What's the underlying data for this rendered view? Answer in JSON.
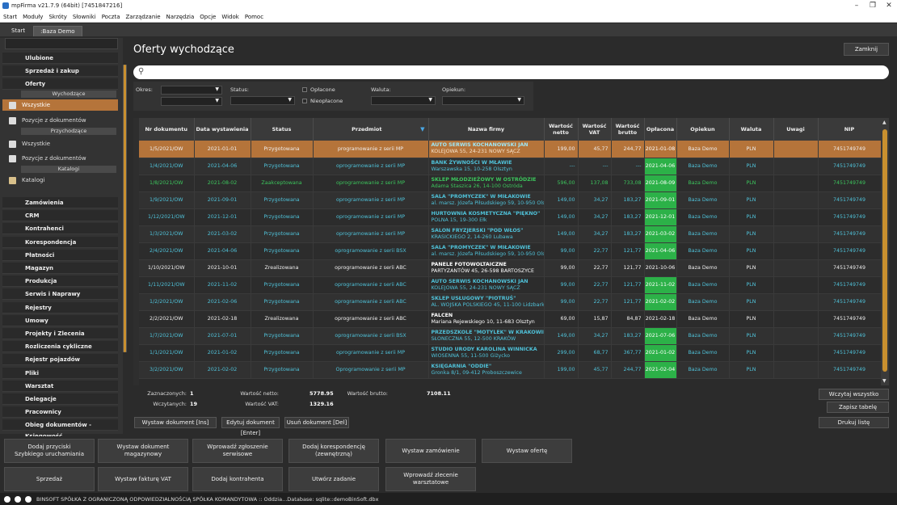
{
  "window": {
    "title": "mpFirma v21.7.9 (64bit) [7451847216]"
  },
  "menu": [
    "Start",
    "Moduły",
    "Skróty",
    "Słowniki",
    "Poczta",
    "Zarządzanie",
    "Narzędzia",
    "Opcje",
    "Widok",
    "Pomoc"
  ],
  "tabs": [
    "Start",
    ":Baza Demo"
  ],
  "sidebar": {
    "top_items": [
      "Ulubione",
      "Sprzedaż i zakup",
      "Oferty"
    ],
    "oferty_sub": {
      "wychodzace": "Wychodzące",
      "wszystkie": "Wszystkie",
      "pozycje": "Pozycje z dokumentów",
      "przychodzace": "Przychodzące",
      "wszystkie2": "Wszystkie",
      "pozycje2": "Pozycje z dokumentów",
      "katalogi_hdr": "Katalogi",
      "katalogi": "Katalogi"
    },
    "bottom_items": [
      "Zamówienia",
      "CRM",
      "Kontrahenci",
      "Korespondencja",
      "Płatności",
      "Magazyn",
      "Produkcja",
      "Serwis i Naprawy",
      "Rejestry",
      "Umowy",
      "Projekty i Zlecenia",
      "Rozliczenia cykliczne",
      "Rejestr pojazdów",
      "Pliki",
      "Warsztat",
      "Delegacje",
      "Pracownicy",
      "Obieg dokumentów - Księgowość"
    ]
  },
  "main": {
    "title": "Oferty wychodzące",
    "close": "Zamknij"
  },
  "filters": {
    "okres": "Okres:",
    "status": "Status:",
    "oplacone": "Opłacone",
    "nieoplacone": "Nieopłacone",
    "waluta": "Waluta:",
    "opiekun": "Opiekun:"
  },
  "colors": {
    "accent": "#b5743a",
    "paid": "#2cb148",
    "teal": "#4fc1d8",
    "green_text": "#3cc45c"
  },
  "table": {
    "headers": [
      "Nr dokumentu",
      "Data wystawienia",
      "Status",
      "Przedmiot",
      "Nazwa firmy",
      "Wartość netto",
      "Wartość VAT",
      "Wartość brutto",
      "Opłacona",
      "Opiekun",
      "Waluta",
      "Uwagi",
      "NIP"
    ],
    "rows": [
      {
        "nr": "1/5/2021/OW",
        "data": "2021-01-01",
        "status": "Przygotowana",
        "przedmiot": "programowanie z serii MP",
        "firma": "AUTO SERWIS KOCHANOWSKI JAN",
        "adres": "KOLEJOWA 55, 24-231 NOWY SĄCZ",
        "netto": "199,00",
        "vat": "45,77",
        "brutto": "244,77",
        "oplacona": "2021-01-08",
        "opiekun": "Baza Demo",
        "waluta": "PLN",
        "uwagi": "",
        "nip": "7451749749",
        "paid": false,
        "style": "sel"
      },
      {
        "nr": "1/4/2021/OW",
        "data": "2021-04-06",
        "status": "Przygotowana",
        "przedmiot": "oprogramowanie z serii MP",
        "firma": "BANK ŻYWNOŚCI W MŁAWIE",
        "adres": "Warszawska 15, 10-258 Olsztyn",
        "netto": "---",
        "vat": "---",
        "brutto": "---",
        "oplacona": "2021-04-06",
        "opiekun": "Baza Demo",
        "waluta": "PLN",
        "uwagi": "",
        "nip": "7451749749",
        "paid": true,
        "style": "teal"
      },
      {
        "nr": "1/8/2021/OW",
        "data": "2021-08-02",
        "status": "Zaakceptowana",
        "przedmiot": "oprogramowanie z serii MP",
        "firma": "SKLEP MŁODZIEŻOWY W OSTRÓDZIE",
        "adres": "Adama Staszica 26, 14-100 Ostróda",
        "netto": "596,00",
        "vat": "137,08",
        "brutto": "733,08",
        "oplacona": "2021-08-09",
        "opiekun": "Baza Demo",
        "waluta": "PLN",
        "uwagi": "",
        "nip": "7451749749",
        "paid": true,
        "style": "green"
      },
      {
        "nr": "1/9/2021/OW",
        "data": "2021-09-01",
        "status": "Przygotowana",
        "przedmiot": "oprogramowanie z serii MP",
        "firma": "SALA \"PROMYCZEK\" W MIŁAKOWIE",
        "adres": "al. marsz. Józefa Piłsudskiego 59, 10-950 Olszty",
        "netto": "149,00",
        "vat": "34,27",
        "brutto": "183,27",
        "oplacona": "2021-09-01",
        "opiekun": "Baza Demo",
        "waluta": "PLN",
        "uwagi": "",
        "nip": "7451749749",
        "paid": true,
        "style": "teal"
      },
      {
        "nr": "1/12/2021/OW",
        "data": "2021-12-01",
        "status": "Przygotowana",
        "przedmiot": "oprogramowanie z serii MP",
        "firma": "HURTOWNIA KOSMETYCZNA \"PIĘKNO\"",
        "adres": "POLNA 15, 19-300 Ełk",
        "netto": "149,00",
        "vat": "34,27",
        "brutto": "183,27",
        "oplacona": "2021-12-01",
        "opiekun": "Baza Demo",
        "waluta": "PLN",
        "uwagi": "",
        "nip": "7451749749",
        "paid": true,
        "style": "teal"
      },
      {
        "nr": "1/3/2021/OW",
        "data": "2021-03-02",
        "status": "Przygotowana",
        "przedmiot": "oprogramowanie z serii MP",
        "firma": "SALON FRYZJERSKI \"POD WŁOS\"",
        "adres": "KRASICKIEGO 2, 14-260 Lubawa",
        "netto": "149,00",
        "vat": "34,27",
        "brutto": "183,27",
        "oplacona": "2021-03-02",
        "opiekun": "Baza Demo",
        "waluta": "PLN",
        "uwagi": "",
        "nip": "7451749749",
        "paid": true,
        "style": "teal"
      },
      {
        "nr": "2/4/2021/OW",
        "data": "2021-04-06",
        "status": "Przygotowana",
        "przedmiot": "oprogramowanie z serii BSX",
        "firma": "SALA \"PROMYCZEK\" W MIŁAKOWIE",
        "adres": "al. marsz. Józefa Piłsudskiego 59, 10-950 Olszty",
        "netto": "99,00",
        "vat": "22,77",
        "brutto": "121,77",
        "oplacona": "2021-04-06",
        "opiekun": "Baza Demo",
        "waluta": "PLN",
        "uwagi": "",
        "nip": "7451749749",
        "paid": true,
        "style": "teal"
      },
      {
        "nr": "1/10/2021/OW",
        "data": "2021-10-01",
        "status": "Zrealizowana",
        "przedmiot": "oprogramowanie z serii ABC",
        "firma": "PANELE FOTOWOLTAICZNE",
        "adres": "PARTYZANTÓW 45, 26-598 BARTOSZYCE",
        "netto": "99,00",
        "vat": "22,77",
        "brutto": "121,77",
        "oplacona": "2021-10-06",
        "opiekun": "Baza Demo",
        "waluta": "PLN",
        "uwagi": "",
        "nip": "7451749749",
        "paid": false,
        "style": "white"
      },
      {
        "nr": "1/11/2021/OW",
        "data": "2021-11-02",
        "status": "Przygotowana",
        "przedmiot": "oprogramowanie z serii ABC",
        "firma": "AUTO SERWIS KOCHANOWSKI JAN",
        "adres": "KOLEJOWA 55, 24-231 NOWY SĄCZ",
        "netto": "99,00",
        "vat": "22,77",
        "brutto": "121,77",
        "oplacona": "2021-11-02",
        "opiekun": "Baza Demo",
        "waluta": "PLN",
        "uwagi": "",
        "nip": "7451749749",
        "paid": true,
        "style": "teal"
      },
      {
        "nr": "1/2/2021/OW",
        "data": "2021-02-06",
        "status": "Przygotowana",
        "przedmiot": "oprogramowanie z serii ABC",
        "firma": "SKLEP USŁUGOWY \"PIOTRUŚ\"",
        "adres": "AL. WOJSKA POLSKIEGO 45, 11-100 Lidzbark W",
        "netto": "99,00",
        "vat": "22,77",
        "brutto": "121,77",
        "oplacona": "2021-02-02",
        "opiekun": "Baza Demo",
        "waluta": "PLN",
        "uwagi": "",
        "nip": "7451749749",
        "paid": true,
        "style": "teal"
      },
      {
        "nr": "2/2/2021/OW",
        "data": "2021-02-18",
        "status": "Zrealizowana",
        "przedmiot": "oprogramowanie z serii ABC",
        "firma": "FALCEN",
        "adres": "Mariana Rejewskiego 10, 11-683 Olsztyn",
        "netto": "69,00",
        "vat": "15,87",
        "brutto": "84,87",
        "oplacona": "2021-02-18",
        "opiekun": "Baza Demo",
        "waluta": "PLN",
        "uwagi": "",
        "nip": "7451749749",
        "paid": false,
        "style": "white"
      },
      {
        "nr": "1/7/2021/OW",
        "data": "2021-07-01",
        "status": "Przygotowana",
        "przedmiot": "oprogramowanie z serii BSX",
        "firma": "PRZEDSZKOLE \"MOTYLEK\" W KRAKOWIE",
        "adres": "SŁONECZNA 55, 12-500 KRAKÓW",
        "netto": "149,00",
        "vat": "34,27",
        "brutto": "183,27",
        "oplacona": "2021-07-06",
        "opiekun": "Baza Demo",
        "waluta": "PLN",
        "uwagi": "",
        "nip": "7451749749",
        "paid": true,
        "style": "teal"
      },
      {
        "nr": "1/1/2021/OW",
        "data": "2021-01-02",
        "status": "Przygotowana",
        "przedmiot": "oprogramowanie z serii MP",
        "firma": "STUDIO URODY KAROLINA WINNICKA",
        "adres": "WIOSENNA 55, 11-500 Giżycko",
        "netto": "299,00",
        "vat": "68,77",
        "brutto": "367,77",
        "oplacona": "2021-01-02",
        "opiekun": "Baza Demo",
        "waluta": "PLN",
        "uwagi": "",
        "nip": "7451749749",
        "paid": true,
        "style": "teal"
      },
      {
        "nr": "3/2/2021/OW",
        "data": "2021-02-02",
        "status": "Przygotowana",
        "przedmiot": "Oprogramowanie z serii MP",
        "firma": "KSIĘGARNIA \"ODDIE\"",
        "adres": "Gronka 8/1, 09-412 Proboszczewice",
        "netto": "199,00",
        "vat": "45,77",
        "brutto": "244,77",
        "oplacona": "2021-02-04",
        "opiekun": "Baza Demo",
        "waluta": "PLN",
        "uwagi": "",
        "nip": "7451749749",
        "paid": true,
        "style": "teal"
      }
    ]
  },
  "summary": {
    "zaznaczonych_l": "Zaznaczonych:",
    "zaznaczonych": "1",
    "wczytanych_l": "Wczytanych:",
    "wczytanych": "19",
    "netto_l": "Wartość netto:",
    "netto": "5778.95",
    "vat_l": "Wartość VAT:",
    "vat": "1329.16",
    "brutto_l": "Wartość brutto:",
    "brutto": "7108.11"
  },
  "actions": {
    "wystaw": "Wystaw dokument [Ins]",
    "edytuj": "Edytuj dokument [Enter]",
    "usun": "Usuń dokument [Del]",
    "wczytaj": "Wczytaj wszystko",
    "zapisz": "Zapisz tabelę",
    "drukuj": "Drukuj listę"
  },
  "quick": [
    "Dodaj przyciski\nSzybkiego uruchamiania",
    "Wystaw dokument\nmagazynowy",
    "Wprowadź zgłoszenie\nserwisowe",
    "Dodaj korespondencję\n(zewnętrzną)",
    "Wystaw zamówienie",
    "Wystaw ofertę",
    "Sprzedaż",
    "Wystaw fakturę VAT",
    "Dodaj kontrahenta",
    "Utwórz zadanie",
    "Wprowadź zlecenie\nwarsztatowe"
  ],
  "status": "BINSOFT SPÓŁKA Z OGRANICZONĄ ODPOWIEDZIALNOŚCIĄ SPÓŁKA KOMANDYTOWA :: Oddzia...Database: sqlite::demoBinSoft.dbx"
}
